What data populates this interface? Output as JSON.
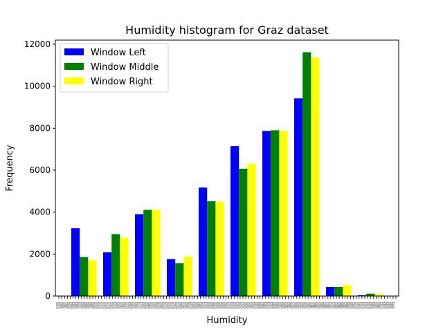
{
  "chart_data": {
    "type": "bar",
    "title": "Humidity histogram for Graz dataset",
    "xlabel": "Humidity",
    "ylabel": "Frequency",
    "ylim": [
      0,
      12000
    ],
    "yticks": [
      0,
      2000,
      4000,
      6000,
      8000,
      10000,
      12000
    ],
    "categories": [
      "1",
      "2",
      "3",
      "4",
      "5",
      "6",
      "7",
      "8",
      "9",
      "10"
    ],
    "series": [
      {
        "name": "Window Left",
        "color": "#0000ff",
        "values": [
          3230,
          2090,
          3900,
          1760,
          5170,
          7150,
          7870,
          9420,
          430,
          40
        ]
      },
      {
        "name": "Window Middle",
        "color": "#008000",
        "values": [
          1860,
          2950,
          4110,
          1570,
          4520,
          6070,
          7900,
          11620,
          430,
          110
        ]
      },
      {
        "name": "Window Right",
        "color": "#ffff00",
        "values": [
          1700,
          2780,
          4110,
          1880,
          4500,
          6300,
          7870,
          11370,
          520,
          100
        ]
      }
    ],
    "x_tick_labels_rendered": "26%28%30%32%34%36%38%40%42%44%46%48%50%52%54%56%58%60%62%64%66%68%70%72%74%76%78%80%82%84%86%88%90%92%94%96%98%100%102%104%106%108%110%112%114%116%118%120%122%124%126%128%130%132%134%136%138%140%142%144%146%148%150%152%154%156%158%160%162%164%166%168%170%172%174%176%178%180%182%184%186%188%190%192%194%196%198%200%202%204%206%208%210%212%214%216%218%220%222%224%226%228%230%232%234%236%238%240%242%244%246%248%250%252%254%256%258%260%262%264%266%268%270%272%274%276%278%280%282%284%286%288%290%292%294%296%298%300%302%304%306%308%310%312%314%316%318%320%322%324%326%328%330%332%334%336%338%340%342%344%346%348%350%352%354%356%358%360%362%364%366%368%370%372%374%376%378%380%382%384%386%388%390%392%394%396%398%400%402%404%406%408%410%412%414%416%418%420%422%424%426%428%430%432%434%436%438%440%442%444%446%448%450%452%454%456%458%460%462%464%466%468%470%472%474%476%478%480%482%484%486%488%490%492%494%496%498%500%502%504%506%508%510%512%514%516%518%520%522%524%526%528%530%532%534%536%538%540%542%544%546%548%550%552%554%556%558%560%562%564%566%568%570%",
    "legend_position": "upper-left",
    "grid": false
  }
}
